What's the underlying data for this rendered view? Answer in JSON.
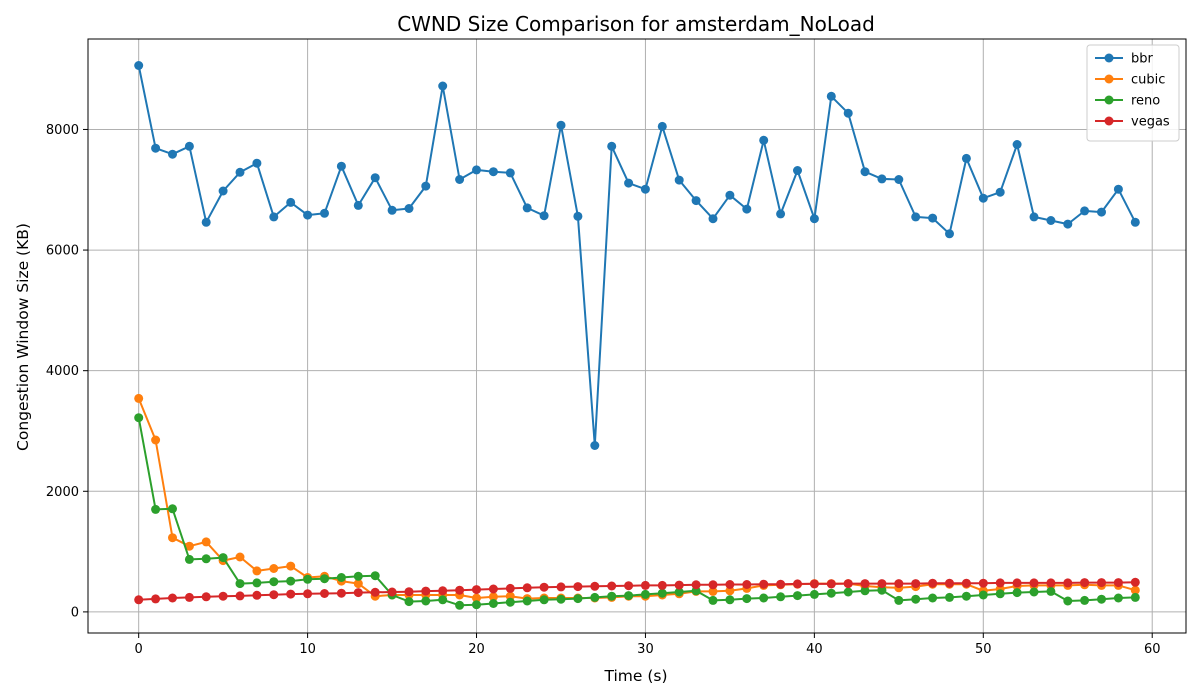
{
  "chart_data": {
    "type": "line",
    "title": "CWND Size Comparison for amsterdam_NoLoad",
    "xlabel": "Time (s)",
    "ylabel": "Congestion Window Size (KB)",
    "xlim": [
      -3,
      62
    ],
    "ylim": [
      -350,
      9500
    ],
    "xticks": [
      0,
      10,
      20,
      30,
      40,
      50,
      60
    ],
    "yticks": [
      0,
      2000,
      4000,
      6000,
      8000
    ],
    "grid": true,
    "legend_position": "top-right",
    "x": [
      0,
      1,
      2,
      3,
      4,
      5,
      6,
      7,
      8,
      9,
      10,
      11,
      12,
      13,
      14,
      15,
      16,
      17,
      18,
      19,
      20,
      21,
      22,
      23,
      24,
      25,
      26,
      27,
      28,
      29,
      30,
      31,
      32,
      33,
      34,
      35,
      36,
      37,
      38,
      39,
      40,
      41,
      42,
      43,
      44,
      45,
      46,
      47,
      48,
      49,
      50,
      51,
      52,
      53,
      54,
      55,
      56,
      57,
      58,
      59
    ],
    "series": [
      {
        "name": "bbr",
        "color": "#1f77b4",
        "values": [
          9060,
          7690,
          7590,
          7720,
          6460,
          6980,
          7290,
          7440,
          6550,
          6790,
          6580,
          6610,
          7390,
          6740,
          7200,
          6660,
          6690,
          7060,
          8720,
          7170,
          7330,
          7300,
          7280,
          6700,
          6570,
          8070,
          6560,
          2760,
          7720,
          7110,
          7010,
          8050,
          7160,
          6820,
          6520,
          6910,
          6680,
          7820,
          6600,
          7320,
          6520,
          8550,
          8270,
          7300,
          7180,
          7170,
          6550,
          6530,
          6270,
          7520,
          6860,
          6960,
          7750,
          6550,
          6490,
          6430,
          6650,
          6630,
          7010,
          6460
        ]
      },
      {
        "name": "cubic",
        "color": "#ff7f0e",
        "values": [
          3540,
          2850,
          1230,
          1090,
          1160,
          850,
          910,
          680,
          720,
          760,
          570,
          590,
          510,
          470,
          260,
          280,
          280,
          280,
          280,
          280,
          230,
          250,
          260,
          220,
          230,
          230,
          230,
          230,
          240,
          260,
          260,
          280,
          300,
          340,
          340,
          350,
          390,
          440,
          450,
          460,
          470,
          470,
          470,
          430,
          410,
          400,
          420,
          460,
          460,
          460,
          350,
          380,
          430,
          440,
          440,
          440,
          450,
          440,
          440,
          360
        ]
      },
      {
        "name": "reno",
        "color": "#2ca02c",
        "values": [
          3220,
          1700,
          1710,
          870,
          880,
          900,
          470,
          480,
          500,
          510,
          540,
          550,
          570,
          590,
          600,
          280,
          170,
          180,
          200,
          110,
          120,
          140,
          160,
          180,
          200,
          210,
          220,
          240,
          260,
          270,
          290,
          310,
          330,
          350,
          190,
          200,
          220,
          230,
          250,
          270,
          290,
          310,
          330,
          350,
          360,
          190,
          210,
          230,
          240,
          260,
          280,
          300,
          320,
          330,
          340,
          180,
          190,
          210,
          230,
          240
        ]
      },
      {
        "name": "vegas",
        "color": "#d62728",
        "values": [
          200,
          215,
          230,
          240,
          250,
          260,
          265,
          275,
          285,
          295,
          300,
          305,
          310,
          320,
          325,
          330,
          335,
          345,
          350,
          360,
          370,
          380,
          390,
          400,
          410,
          415,
          420,
          425,
          430,
          435,
          440,
          440,
          445,
          450,
          450,
          455,
          455,
          460,
          460,
          465,
          465,
          465,
          470,
          470,
          470,
          470,
          470,
          475,
          475,
          475,
          475,
          480,
          480,
          480,
          480,
          480,
          485,
          485,
          485,
          490
        ]
      }
    ]
  }
}
